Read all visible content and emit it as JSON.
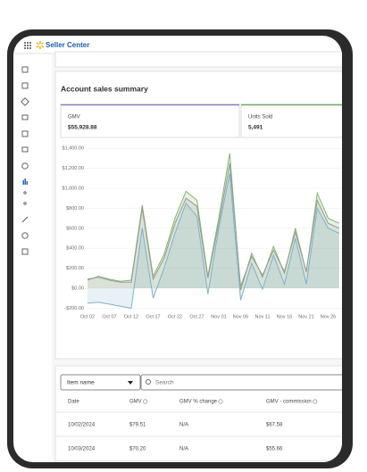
{
  "header": {
    "brand": "Seller Center"
  },
  "summary": {
    "title": "Account sales summary",
    "metrics": [
      {
        "label": "GMV",
        "value": "$55,928.88"
      },
      {
        "label": "Units Sold",
        "value": "5,491"
      }
    ]
  },
  "chart_data": {
    "type": "area",
    "categories": [
      "Oct 02",
      null,
      "Oct 07",
      null,
      "Oct 12",
      null,
      "Oct 17",
      null,
      "Oct 22",
      null,
      "Oct 27",
      null,
      "Nov 01",
      null,
      "Nov 06",
      null,
      "Nov 11",
      null,
      "Nov 16",
      null,
      "Nov 21",
      null,
      "Nov 26",
      null
    ],
    "series": [
      {
        "color": "#7fb86a",
        "values": [
          80,
          120,
          90,
          70,
          80,
          830,
          120,
          340,
          700,
          970,
          880,
          120,
          700,
          1350,
          -20,
          350,
          110,
          420,
          150,
          600,
          160,
          950,
          700,
          650
        ]
      },
      {
        "color": "#9a9a9a",
        "values": [
          90,
          110,
          80,
          60,
          60,
          800,
          90,
          300,
          650,
          900,
          820,
          100,
          650,
          1250,
          20,
          320,
          130,
          380,
          170,
          560,
          170,
          880,
          650,
          600
        ]
      },
      {
        "color": "#7db3c9",
        "values": [
          -150,
          -140,
          -160,
          -180,
          -200,
          600,
          -100,
          200,
          550,
          850,
          720,
          -60,
          600,
          1150,
          -120,
          250,
          -10,
          330,
          40,
          500,
          40,
          800,
          600,
          550
        ]
      }
    ],
    "ylim": [
      -200,
      1400
    ],
    "yticks": [
      {
        "value": -200,
        "label": "-$200.00"
      },
      {
        "value": 0,
        "label": "$0.00"
      },
      {
        "value": 200,
        "label": "$200.00"
      },
      {
        "value": 400,
        "label": "$400.00"
      },
      {
        "value": 600,
        "label": "$600.00"
      },
      {
        "value": 800,
        "label": "$800.00"
      },
      {
        "value": 1000,
        "label": "$1,000.00"
      },
      {
        "value": 1200,
        "label": "$1,200.00"
      },
      {
        "value": 1400,
        "label": "$1,400.00"
      }
    ],
    "grid": true
  },
  "table": {
    "filter": "Item name",
    "search": "Search",
    "columns": [
      "Date",
      "GMV",
      "GMV % change",
      "GMV - commission"
    ],
    "rows": [
      [
        "10/02/2024",
        "$79.51",
        "N/A",
        "$67.58"
      ],
      [
        "10/03/2024",
        "$70.20",
        "N/A",
        "$55.66"
      ]
    ]
  }
}
